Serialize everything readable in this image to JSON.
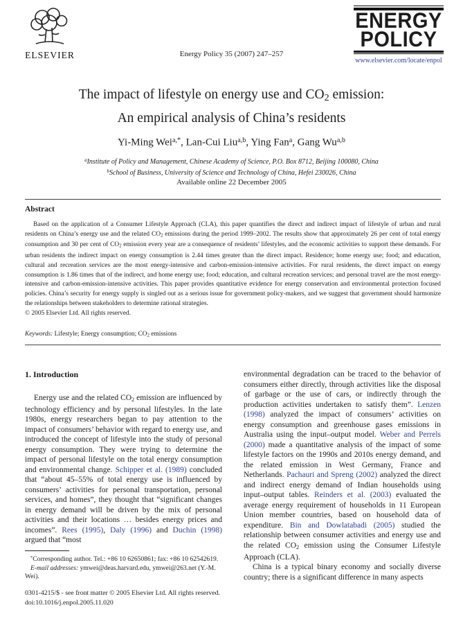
{
  "colors": {
    "citation_blue": "#2e3f9e",
    "text": "#1c1c1c"
  },
  "header": {
    "publisher_name": "ELSEVIER",
    "journal_ref": "Energy Policy 35 (2007) 247–257",
    "logo_line1": "ENERGY",
    "logo_line2": "POLICY",
    "journal_url": "www.elsevier.com/locate/enpol"
  },
  "title": {
    "line1": [
      {
        "t": "The impact of lifestyle on energy use and CO"
      },
      {
        "t": "2",
        "s": "sub"
      },
      {
        "t": " emission:"
      }
    ],
    "line2": "An empirical analysis of China’s residents"
  },
  "authors": [
    {
      "t": "Yi-Ming Wei"
    },
    {
      "t": "a,*",
      "s": "sup"
    },
    {
      "t": ", Lan-Cui Liu"
    },
    {
      "t": "a,b",
      "s": "sup"
    },
    {
      "t": ", Ying Fan"
    },
    {
      "t": "a",
      "s": "sup"
    },
    {
      "t": ", Gang Wu"
    },
    {
      "t": "a,b",
      "s": "sup"
    }
  ],
  "affiliations": {
    "a": [
      {
        "t": "a",
        "s": "sup"
      },
      {
        "t": "Institute of Policy and Management, Chinese Academy of Science, P.O. Box 8712, Beijing 100080, China"
      }
    ],
    "b": [
      {
        "t": "b",
        "s": "sup"
      },
      {
        "t": "School of Business, University of Science and Technology of China, Hefei 230026, China"
      }
    ]
  },
  "available_online": "Available online 22 December 2005",
  "abstract": {
    "heading": "Abstract",
    "paragraph": [
      {
        "t": "Based on the application of a Consumer Lifestyle Approach (CLA), this paper quantifies the direct and indirect impact of lifestyle of urban and rural residents on China’s energy use and the related CO"
      },
      {
        "t": "2",
        "s": "sub"
      },
      {
        "t": " emissions during the period 1999–2002. The results show that approximately 26 per cent of total energy consumption and 30 per cent of CO"
      },
      {
        "t": "2",
        "s": "sub"
      },
      {
        "t": " emission every year are a consequence of residents’ lifestyles, and the economic activities to support these demands. For urban residents the indirect impact on energy consumption is 2.44 times greater than the direct impact. Residence; home energy use; food; and education, cultural and recreation services are the most energy-intensive and carbon-emission-intensive activities. For rural residents, the direct impact on energy consumption is 1.86 times that of the indirect, and home energy use; food; education, and cultural recreation services; and personal travel are the most energy-intensive and carbon-emission-intensive activities. This paper provides quantitative evidence for energy conservation and environmental protection focused policies. China’s security for energy supply is singled out as a serious issue for government policy-makers, and we suggest that government should harmonize the relationships between stakeholders to determine rational strategies."
      }
    ],
    "copyright": "© 2005 Elsevier Ltd. All rights reserved.",
    "keywords": [
      {
        "t": "Keywords: ",
        "s": "i"
      },
      {
        "t": "Lifestyle; Energy consumption; CO"
      },
      {
        "t": "2",
        "s": "sub"
      },
      {
        "t": " emissions"
      }
    ]
  },
  "body": {
    "intro_heading": "1. Introduction",
    "left_paragraph": [
      {
        "t": "Energy use and the related CO"
      },
      {
        "t": "2",
        "s": "sub"
      },
      {
        "t": " emission are influenced by technology efficiency and by personal lifestyles. In the late 1980s, energy researchers began to pay attention to the impact of consumers’ behavior with regard to energy use, and introduced the concept of lifestyle into the study of personal energy consumption. They were trying to determine the impact of personal lifestyle on the total energy consumption and environmental change. "
      },
      {
        "t": "Schipper et al. (1989)",
        "s": "cite"
      },
      {
        "t": " concluded that “about 45–55% of total energy use is influenced by consumers’ activities for personal transportation, personal services, and homes”, they thought that “significant changes in energy demand will be driven by the mix of personal activities and their locations … besides energy prices and incomes”. "
      },
      {
        "t": "Rees (1995)",
        "s": "cite"
      },
      {
        "t": ", "
      },
      {
        "t": "Daly (1996)",
        "s": "cite"
      },
      {
        "t": " and "
      },
      {
        "t": "Duchin (1998)",
        "s": "cite"
      },
      {
        "t": " argued that “most"
      }
    ],
    "right_paragraph1": [
      {
        "t": "environmental degradation can be traced to the behavior of consumers either directly, through activities like the disposal of garbage or the use of cars, or indirectly through the production activities undertaken to satisfy them”. "
      },
      {
        "t": "Lenzen (1998)",
        "s": "cite"
      },
      {
        "t": " analyzed the impact of consumers’ activities on energy consumption and greenhouse gases emissions in Australia using the input–output model. "
      },
      {
        "t": "Weber and Perrels (2000)",
        "s": "cite"
      },
      {
        "t": " made a quantitative analysis of the impact of some lifestyle factors on the 1990s and 2010s energy demand, and the related emission in West Germany, France and Netherlands. "
      },
      {
        "t": "Pachauri and Spreng (2002)",
        "s": "cite"
      },
      {
        "t": " analyzed the direct and indirect energy demand of Indian households using input–output tables. "
      },
      {
        "t": "Reinders et al. (2003)",
        "s": "cite"
      },
      {
        "t": " evaluated the average energy requirement of households in 11 European Union member countries, based on household data of expenditure. "
      },
      {
        "t": "Bin and Dowlatabadi (2005)",
        "s": "cite"
      },
      {
        "t": " studied the relationship between consumer activities and energy use and the related CO"
      },
      {
        "t": "2",
        "s": "sub"
      },
      {
        "t": " emission using the Consumer Lifestyle Approach (CLA)."
      }
    ],
    "right_paragraph2": "China is a typical binary economy and socially diverse country; there is a significant difference in many aspects"
  },
  "footnote": {
    "line1": [
      {
        "t": "*",
        "s": "sup"
      },
      {
        "t": "Corresponding author. Tel.: +86 10 62650861; fax: +86 10 62542619."
      }
    ],
    "line2": [
      {
        "t": "E-mail addresses:",
        "s": "i"
      },
      {
        "t": " ymwei@deas.harvard.edu, ymwei@263.net (Y.-M. Wei)."
      }
    ]
  },
  "imprint": {
    "line1": "0301-4215/$ - see front matter © 2005 Elsevier Ltd. All rights reserved.",
    "line2": "doi:10.1016/j.enpol.2005.11.020"
  }
}
